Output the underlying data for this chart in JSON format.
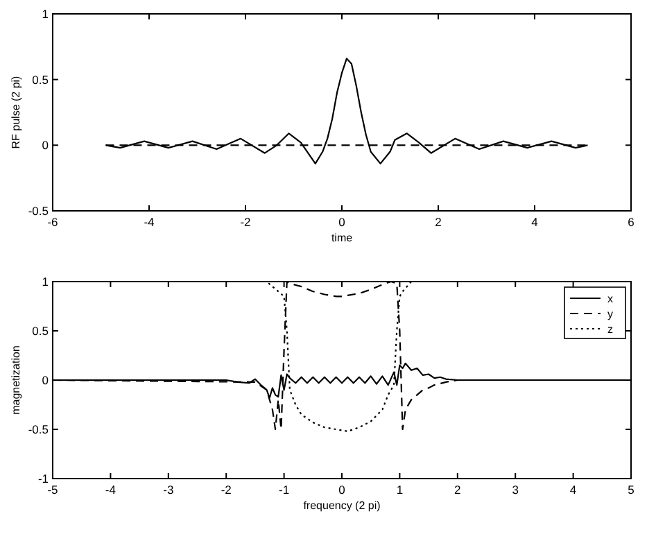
{
  "chart_data": [
    {
      "type": "line",
      "xlabel": "time",
      "ylabel": "RF pulse (2 pi)",
      "xlim": [
        -6,
        6
      ],
      "ylim": [
        -0.5,
        1
      ],
      "xticks": [
        -6,
        -4,
        -2,
        0,
        2,
        4,
        6
      ],
      "yticks": [
        -0.5,
        0,
        0.5,
        1
      ],
      "grid": false,
      "legend": false,
      "series": [
        {
          "color": "#000000",
          "line_style": "solid",
          "x": [
            -4.9,
            -4.6,
            -4.1,
            -3.6,
            -3.1,
            -2.6,
            -2.1,
            -1.6,
            -1.35,
            -1.1,
            -0.85,
            -0.55,
            -0.4,
            -0.3,
            -0.2,
            -0.1,
            0,
            0.1,
            0.2,
            0.3,
            0.4,
            0.5,
            0.6,
            0.8,
            1.0,
            1.1,
            1.35,
            1.6,
            1.85,
            2.35,
            2.85,
            3.35,
            3.85,
            4.35,
            4.85,
            5.1
          ],
          "values": [
            0,
            -0.02,
            0.03,
            -0.02,
            0.03,
            -0.03,
            0.05,
            -0.06,
            0,
            0.09,
            0.02,
            -0.14,
            -0.05,
            0.05,
            0.2,
            0.4,
            0.55,
            0.66,
            0.62,
            0.45,
            0.25,
            0.08,
            -0.05,
            -0.14,
            -0.05,
            0.04,
            0.09,
            0.02,
            -0.06,
            0.05,
            -0.03,
            0.03,
            -0.02,
            0.03,
            -0.02,
            0
          ]
        },
        {
          "color": "#000000",
          "line_style": "dashed",
          "x": [
            -4.9,
            5.1
          ],
          "values": [
            0,
            0
          ]
        }
      ]
    },
    {
      "type": "line",
      "xlabel": "frequency (2 pi)",
      "ylabel": "magnetization",
      "xlim": [
        -5,
        5
      ],
      "ylim": [
        -1,
        1
      ],
      "xticks": [
        -5,
        -4,
        -3,
        -2,
        -1,
        0,
        1,
        2,
        3,
        4,
        5
      ],
      "yticks": [
        -1,
        -0.5,
        0,
        0.5,
        1
      ],
      "grid": false,
      "legend": "top right",
      "series": [
        {
          "name": "x",
          "color": "#000000",
          "line_style": "solid",
          "x": [
            -5,
            -2,
            -1.8,
            -1.6,
            -1.5,
            -1.4,
            -1.3,
            -1.25,
            -1.2,
            -1.15,
            -1.1,
            -1.05,
            -1,
            -0.95,
            -0.9,
            -0.8,
            -0.7,
            -0.6,
            -0.5,
            -0.4,
            -0.3,
            -0.2,
            -0.1,
            0,
            0.1,
            0.2,
            0.3,
            0.4,
            0.5,
            0.6,
            0.7,
            0.8,
            0.9,
            0.95,
            1,
            1.05,
            1.1,
            1.2,
            1.3,
            1.4,
            1.5,
            1.6,
            1.7,
            1.8,
            2,
            5
          ],
          "values": [
            0,
            0,
            -0.02,
            -0.03,
            0.01,
            -0.05,
            -0.1,
            -0.18,
            -0.08,
            -0.15,
            -0.17,
            0.05,
            -0.1,
            0.06,
            0.02,
            -0.03,
            0.03,
            -0.03,
            0.03,
            -0.03,
            0.03,
            -0.03,
            0.03,
            -0.03,
            0.03,
            -0.03,
            0.03,
            -0.03,
            0.04,
            -0.04,
            0.04,
            -0.05,
            0.08,
            -0.05,
            0.15,
            0.12,
            0.17,
            0.1,
            0.12,
            0.05,
            0.06,
            0.02,
            0.03,
            0.01,
            0,
            0
          ]
        },
        {
          "name": "y",
          "color": "#000000",
          "line_style": "dashed",
          "x": [
            -5,
            -1.5,
            -1.3,
            -1.2,
            -1.15,
            -1.1,
            -1.05,
            -1.0,
            -0.95,
            -0.9,
            -0.7,
            -0.5,
            -0.3,
            -0.1,
            0,
            0.1,
            0.3,
            0.5,
            0.7,
            0.85,
            0.95,
            1.0,
            1.05,
            1.1,
            1.2,
            1.3,
            1.4,
            1.5,
            1.6,
            1.8,
            2,
            5
          ],
          "values": [
            0,
            -0.02,
            -0.1,
            -0.3,
            -0.5,
            -0.2,
            -0.5,
            0.3,
            1,
            0.98,
            0.95,
            0.9,
            0.87,
            0.85,
            0.85,
            0.86,
            0.88,
            0.92,
            0.97,
            1,
            0.98,
            0.5,
            -0.5,
            -0.3,
            -0.2,
            -0.15,
            -0.1,
            -0.08,
            -0.05,
            -0.02,
            0,
            0
          ]
        },
        {
          "name": "z",
          "color": "#000000",
          "line_style": "dotted",
          "x": [
            -5,
            -1.3,
            -1.1,
            -1.0,
            -0.95,
            -0.9,
            -0.8,
            -0.7,
            -0.5,
            -0.3,
            -0.1,
            0,
            0.1,
            0.3,
            0.5,
            0.7,
            0.8,
            0.9,
            0.95,
            1.0,
            1.05,
            1.2,
            5
          ],
          "values": [
            1,
            1,
            0.9,
            0.85,
            0.5,
            -0.1,
            -0.25,
            -0.35,
            -0.43,
            -0.48,
            -0.5,
            -0.51,
            -0.52,
            -0.48,
            -0.42,
            -0.3,
            -0.15,
            -0.05,
            0.5,
            0.85,
            0.9,
            1,
            1
          ]
        }
      ]
    }
  ]
}
